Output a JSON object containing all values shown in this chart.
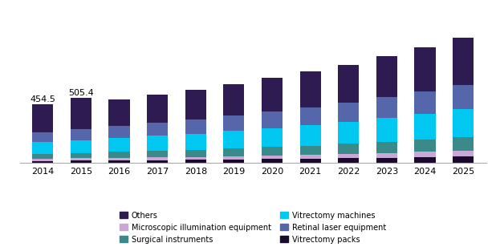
{
  "years": [
    2014,
    2015,
    2016,
    2017,
    2018,
    2019,
    2020,
    2021,
    2022,
    2023,
    2024,
    2025
  ],
  "segments": {
    "Vitrectomy packs": [
      18,
      20,
      22,
      24,
      26,
      28,
      31,
      34,
      37,
      41,
      45,
      50
    ],
    "Microscopic illumination equipment": [
      15,
      17,
      19,
      21,
      23,
      25,
      28,
      31,
      34,
      38,
      42,
      47
    ],
    "Surgical instruments": [
      38,
      42,
      46,
      50,
      54,
      59,
      65,
      71,
      78,
      86,
      95,
      105
    ],
    "Vitrectomy machines": [
      90,
      100,
      108,
      117,
      126,
      136,
      147,
      158,
      170,
      184,
      199,
      215
    ],
    "Retinal laser equipment": [
      78,
      87,
      94,
      102,
      110,
      118,
      128,
      138,
      149,
      161,
      174,
      188
    ],
    "Others": [
      215.5,
      239.4,
      205,
      215,
      228,
      243,
      258,
      275,
      294,
      315,
      338,
      365
    ]
  },
  "colors": {
    "Vitrectomy packs": "#1a0a2e",
    "Microscopic illumination equipment": "#c9a8d8",
    "Surgical instruments": "#3a8a8a",
    "Vitrectomy machines": "#00c8f0",
    "Retinal laser equipment": "#5566aa",
    "Others": "#2d1b52"
  },
  "legend_order": [
    "Others",
    "Microscopic illumination equipment",
    "Surgical instruments",
    "Vitrectomy machines",
    "Retinal laser equipment",
    "Vitrectomy packs"
  ],
  "annotations": [
    {
      "year_idx": 0,
      "text": "454.5"
    },
    {
      "year_idx": 1,
      "text": "505.4"
    }
  ],
  "background_color": "#ffffff",
  "bar_width": 0.55,
  "ylim_factor": 1.2,
  "xlabel_fontsize": 8,
  "annotation_fontsize": 8
}
